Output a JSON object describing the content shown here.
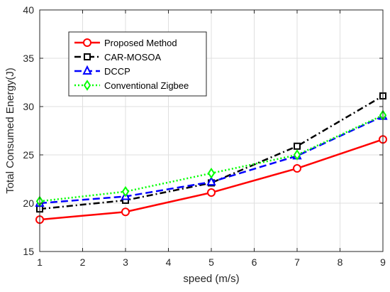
{
  "chart_data": {
    "type": "line",
    "title": "",
    "xlabel": "speed (m/s)",
    "ylabel": "Total Consumed Energy(J)",
    "xlim": [
      1,
      9
    ],
    "ylim": [
      15,
      40
    ],
    "xticks": [
      1,
      2,
      3,
      4,
      5,
      6,
      7,
      8,
      9
    ],
    "yticks": [
      15,
      20,
      25,
      30,
      35,
      40
    ],
    "grid": true,
    "legend_position": "top-left",
    "x": [
      1,
      3,
      5,
      7,
      9
    ],
    "series": [
      {
        "name": "Proposed Method",
        "values": [
          18.3,
          19.1,
          21.1,
          23.6,
          26.6
        ],
        "color": "#ff0000",
        "dash": "solid",
        "marker": "circle"
      },
      {
        "name": "CAR-MOSOA",
        "values": [
          19.4,
          20.3,
          22.1,
          25.9,
          31.1
        ],
        "color": "#000000",
        "dash": "dashdot",
        "marker": "square"
      },
      {
        "name": "DCCP",
        "values": [
          20.0,
          20.7,
          22.2,
          24.9,
          29.0
        ],
        "color": "#0000ff",
        "dash": "dashed",
        "marker": "triangle"
      },
      {
        "name": "Conventional Zigbee",
        "values": [
          20.2,
          21.2,
          23.1,
          25.0,
          29.1
        ],
        "color": "#00ff00",
        "dash": "dotted",
        "marker": "diamond"
      }
    ]
  }
}
